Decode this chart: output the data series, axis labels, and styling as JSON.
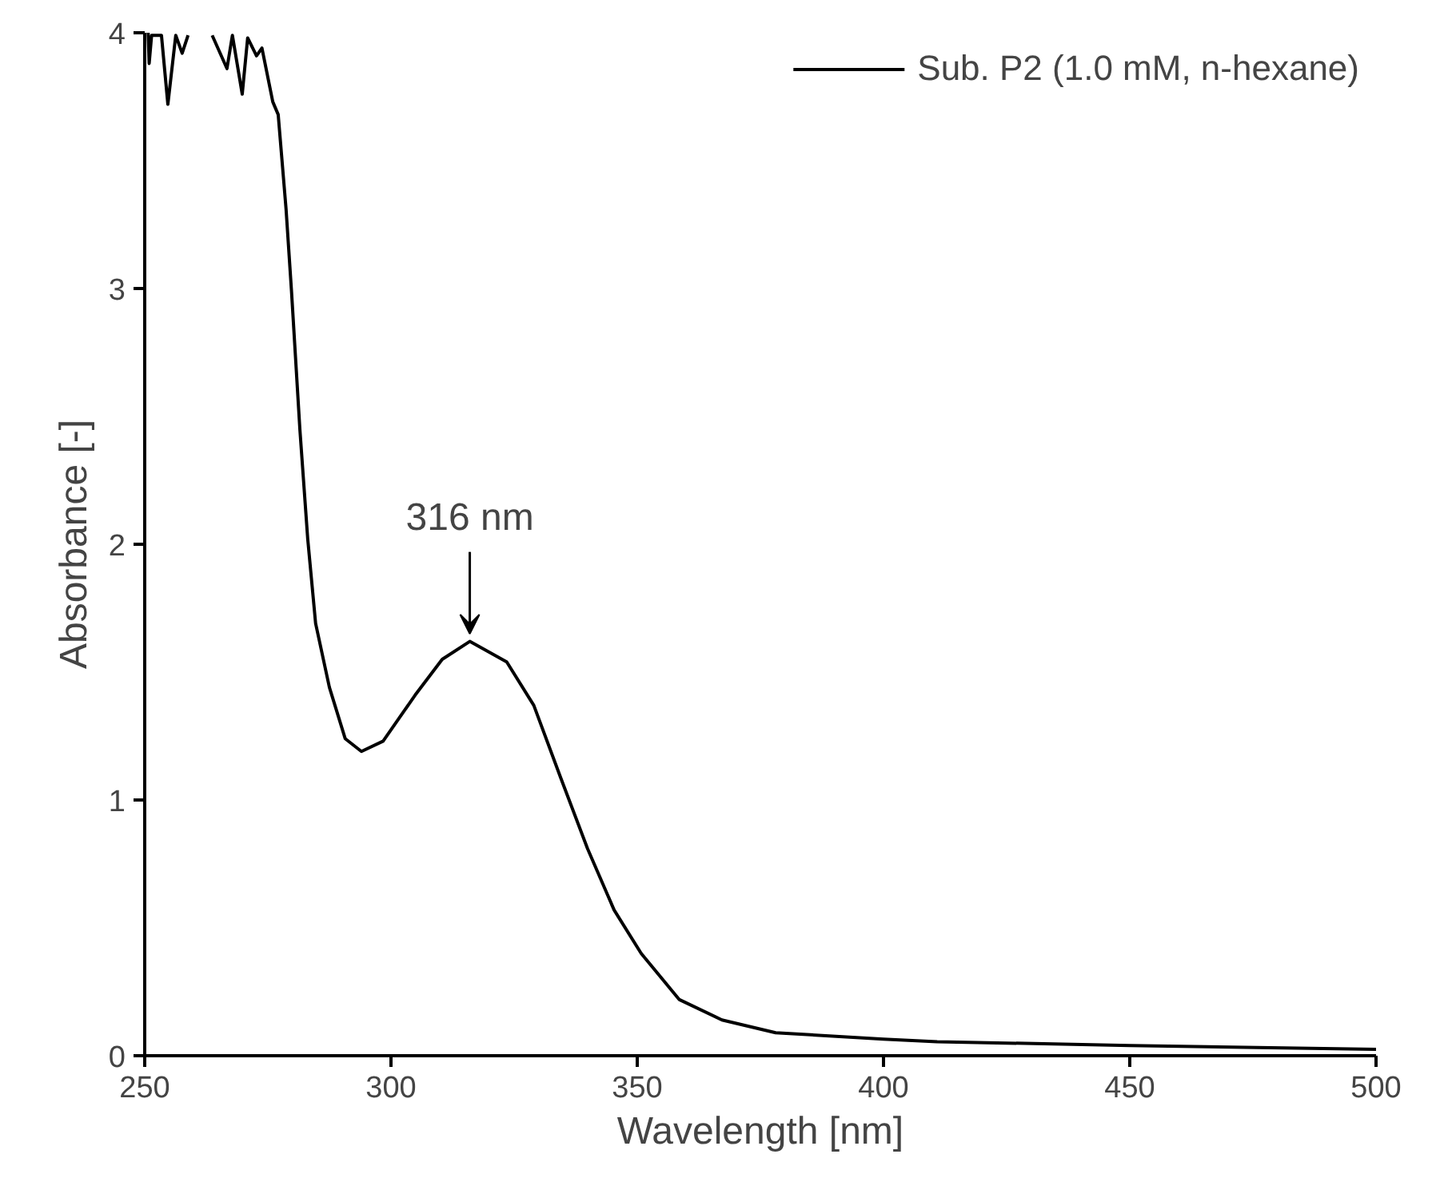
{
  "chart_data": {
    "type": "line",
    "xlabel": "Wavelength [nm]",
    "ylabel": "Absorbance [-]",
    "xlim": [
      250,
      500
    ],
    "ylim": [
      0,
      4
    ],
    "xticks": [
      250,
      300,
      350,
      400,
      450,
      500
    ],
    "yticks": [
      0,
      1,
      2,
      3,
      4
    ],
    "grid": false,
    "legend": "top right",
    "marker": "none",
    "line_style": "solid",
    "annotations": [
      {
        "text": "316 nm",
        "x": 316,
        "y": 1.62
      }
    ],
    "series": [
      {
        "name": "Sub. P2 (1.0 mM, n-hexane)",
        "color": "#000000",
        "x": [
          250.7,
          250.9,
          251.4,
          253.4,
          254.7,
          256.3,
          257.6,
          258.8,
          261,
          263.7,
          266.7,
          267.8,
          269.8,
          270.9,
          272.7,
          273.8,
          276.0,
          277.1,
          278.7,
          279.8,
          281.5,
          283.1,
          284.7,
          287.5,
          290.7,
          294.0,
          298.4,
          304.9,
          310.4,
          316.0,
          323.5,
          329.0,
          334.4,
          339.9,
          345.3,
          350.8,
          358.5,
          367.2,
          378.1,
          400,
          410.9,
          450,
          500
        ],
        "values": [
          4.0,
          3.88,
          3.99,
          3.99,
          3.72,
          3.99,
          3.92,
          3.99,
          null,
          3.99,
          3.86,
          3.99,
          3.76,
          3.98,
          3.91,
          3.94,
          3.73,
          3.68,
          3.31,
          2.99,
          2.45,
          2.02,
          1.69,
          1.44,
          1.24,
          1.19,
          1.23,
          1.41,
          1.55,
          1.62,
          1.54,
          1.37,
          1.09,
          0.81,
          0.57,
          0.4,
          0.22,
          0.14,
          0.09,
          0.065,
          0.055,
          0.04,
          0.025
        ]
      }
    ]
  }
}
